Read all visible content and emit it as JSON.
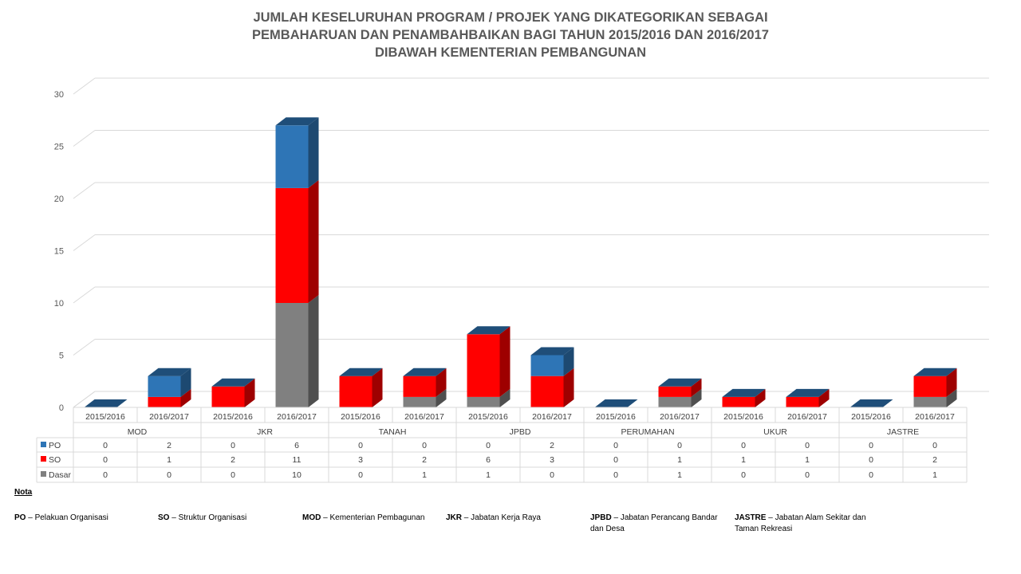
{
  "title_lines": [
    "JUMLAH KESELURUHAN PROGRAM / PROJEK YANG DIKATEGORIKAN SEBAGAI",
    "PEMBAHARUAN DAN PENAMBAHBAIKAN BAGI TAHUN 2015/2016 DAN 2016/2017",
    "DIBAWAH KEMENTERIAN PEMBANGUNAN"
  ],
  "chart_data": {
    "type": "bar",
    "stacked": true,
    "three_d": true,
    "ylim": [
      0,
      30
    ],
    "yticks": [
      0,
      5,
      10,
      15,
      20,
      25,
      30
    ],
    "grid": true,
    "groups": [
      "MOD",
      "JKR",
      "TANAH",
      "JPBD",
      "PERUMAHAN",
      "UKUR",
      "JASTRE"
    ],
    "years": [
      "2015/2016",
      "2016/2017"
    ],
    "categories": [
      "MOD 2015/2016",
      "MOD 2016/2017",
      "JKR 2015/2016",
      "JKR 2016/2017",
      "TANAH 2015/2016",
      "TANAH 2016/2017",
      "JPBD 2015/2016",
      "JPBD 2016/2017",
      "PERUMAHAN 2015/2016",
      "PERUMAHAN 2016/2017",
      "UKUR 2015/2016",
      "UKUR 2016/2017",
      "JASTRE 2015/2016",
      "JASTRE 2016/2017"
    ],
    "series": [
      {
        "name": "Dasar",
        "color": "#808080",
        "values": [
          0,
          0,
          0,
          10,
          0,
          1,
          1,
          0,
          0,
          1,
          0,
          0,
          0,
          1
        ]
      },
      {
        "name": "SO",
        "color": "#ff0000",
        "values": [
          0,
          1,
          2,
          11,
          3,
          2,
          6,
          3,
          0,
          1,
          1,
          1,
          0,
          2
        ]
      },
      {
        "name": "PO",
        "color": "#2e75b6",
        "values": [
          0,
          2,
          0,
          6,
          0,
          0,
          0,
          2,
          0,
          0,
          0,
          0,
          0,
          0
        ]
      }
    ],
    "table_row_order": [
      "PO",
      "SO",
      "Dasar"
    ],
    "legend_placement": "data-table"
  },
  "nota": {
    "heading": "Nota",
    "items": [
      {
        "abbr": "PO",
        "text": "Pelakuan Organisasi"
      },
      {
        "abbr": "SO",
        "text": "Struktur Organisasi"
      },
      {
        "abbr": "MOD",
        "text": "Kementerian Pembagunan"
      },
      {
        "abbr": "JKR",
        "text": "Jabatan Kerja Raya"
      },
      {
        "abbr": "JPBD",
        "text_lines": [
          "Jabatan Perancang Bandar",
          "dan Desa"
        ]
      },
      {
        "abbr": "JASTRE",
        "text_lines": [
          "Jabatan Alam Sekitar dan",
          "Taman Rekreasi"
        ]
      }
    ],
    "dash": "–"
  }
}
